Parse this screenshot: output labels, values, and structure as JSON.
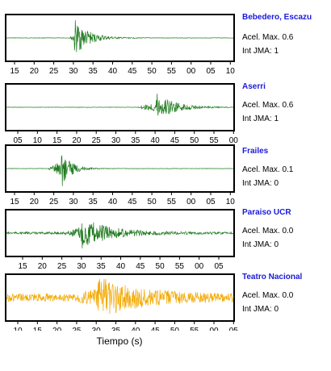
{
  "chart_data": {
    "type": "line",
    "xlabel": "Tiempo (s)",
    "panels": [
      {
        "station": "Bebedero, Escazu",
        "accel_label": "Acel. Max.",
        "accel_value": "0.6",
        "jma_label": "Int JMA:",
        "jma_value": "1",
        "color": "#1f7a1f",
        "ticks": [
          "15",
          "20",
          "25",
          "30",
          "35",
          "40",
          "45",
          "50",
          "55",
          "00",
          "05",
          "10"
        ],
        "first_tick_x": 18,
        "event": {
          "onset": 0.28,
          "peak": 0.3,
          "amp": 0.85,
          "decay": 0.06,
          "noise": 0.01
        }
      },
      {
        "station": "Aserri",
        "accel_label": "Acel. Max.",
        "accel_value": "0.6",
        "jma_label": "Int JMA:",
        "jma_value": "1",
        "color": "#1f7a1f",
        "ticks": [
          "05",
          "10",
          "15",
          "20",
          "25",
          "30",
          "35",
          "40",
          "45",
          "50",
          "55",
          "00"
        ],
        "first_tick_x": 22,
        "event": {
          "onset": 0.58,
          "peak": 0.66,
          "amp": 0.75,
          "decay": 0.07,
          "noise": 0.01
        }
      },
      {
        "station": "Frailes",
        "accel_label": "Acel. Max.",
        "accel_value": "0.1",
        "jma_label": "Int JMA:",
        "jma_value": "0",
        "color": "#1f7a1f",
        "ticks": [
          "15",
          "20",
          "25",
          "30",
          "35",
          "40",
          "45",
          "50",
          "55",
          "00",
          "05",
          "10"
        ],
        "first_tick_x": 18,
        "event": {
          "onset": 0.18,
          "peak": 0.24,
          "amp": 0.95,
          "decay": 0.04,
          "noise": 0.01
        }
      },
      {
        "station": "Paraiso UCR",
        "accel_label": "Acel. Max.",
        "accel_value": "0.0",
        "jma_label": "Int JMA:",
        "jma_value": "0",
        "color": "#1f7a1f",
        "ticks": [
          "15",
          "20",
          "25",
          "30",
          "35",
          "40",
          "45",
          "50",
          "55",
          "00",
          "05",
          "10"
        ],
        "first_tick_x": 28,
        "event": {
          "onset": 0.25,
          "peak": 0.33,
          "amp": 0.7,
          "decay": 0.12,
          "noise": 0.05
        }
      },
      {
        "station": "Teatro Nacional",
        "accel_label": "Acel. Max.",
        "accel_value": "0.0",
        "jma_label": "Int JMA:",
        "jma_value": "0",
        "color": "#f2a900",
        "ticks": [
          "10",
          "15",
          "20",
          "25",
          "30",
          "35",
          "40",
          "45",
          "50",
          "55",
          "00",
          "05"
        ],
        "first_tick_x": 22,
        "event": {
          "onset": 0.3,
          "peak": 0.4,
          "amp": 0.85,
          "decay": 0.18,
          "noise": 0.18
        }
      }
    ]
  }
}
